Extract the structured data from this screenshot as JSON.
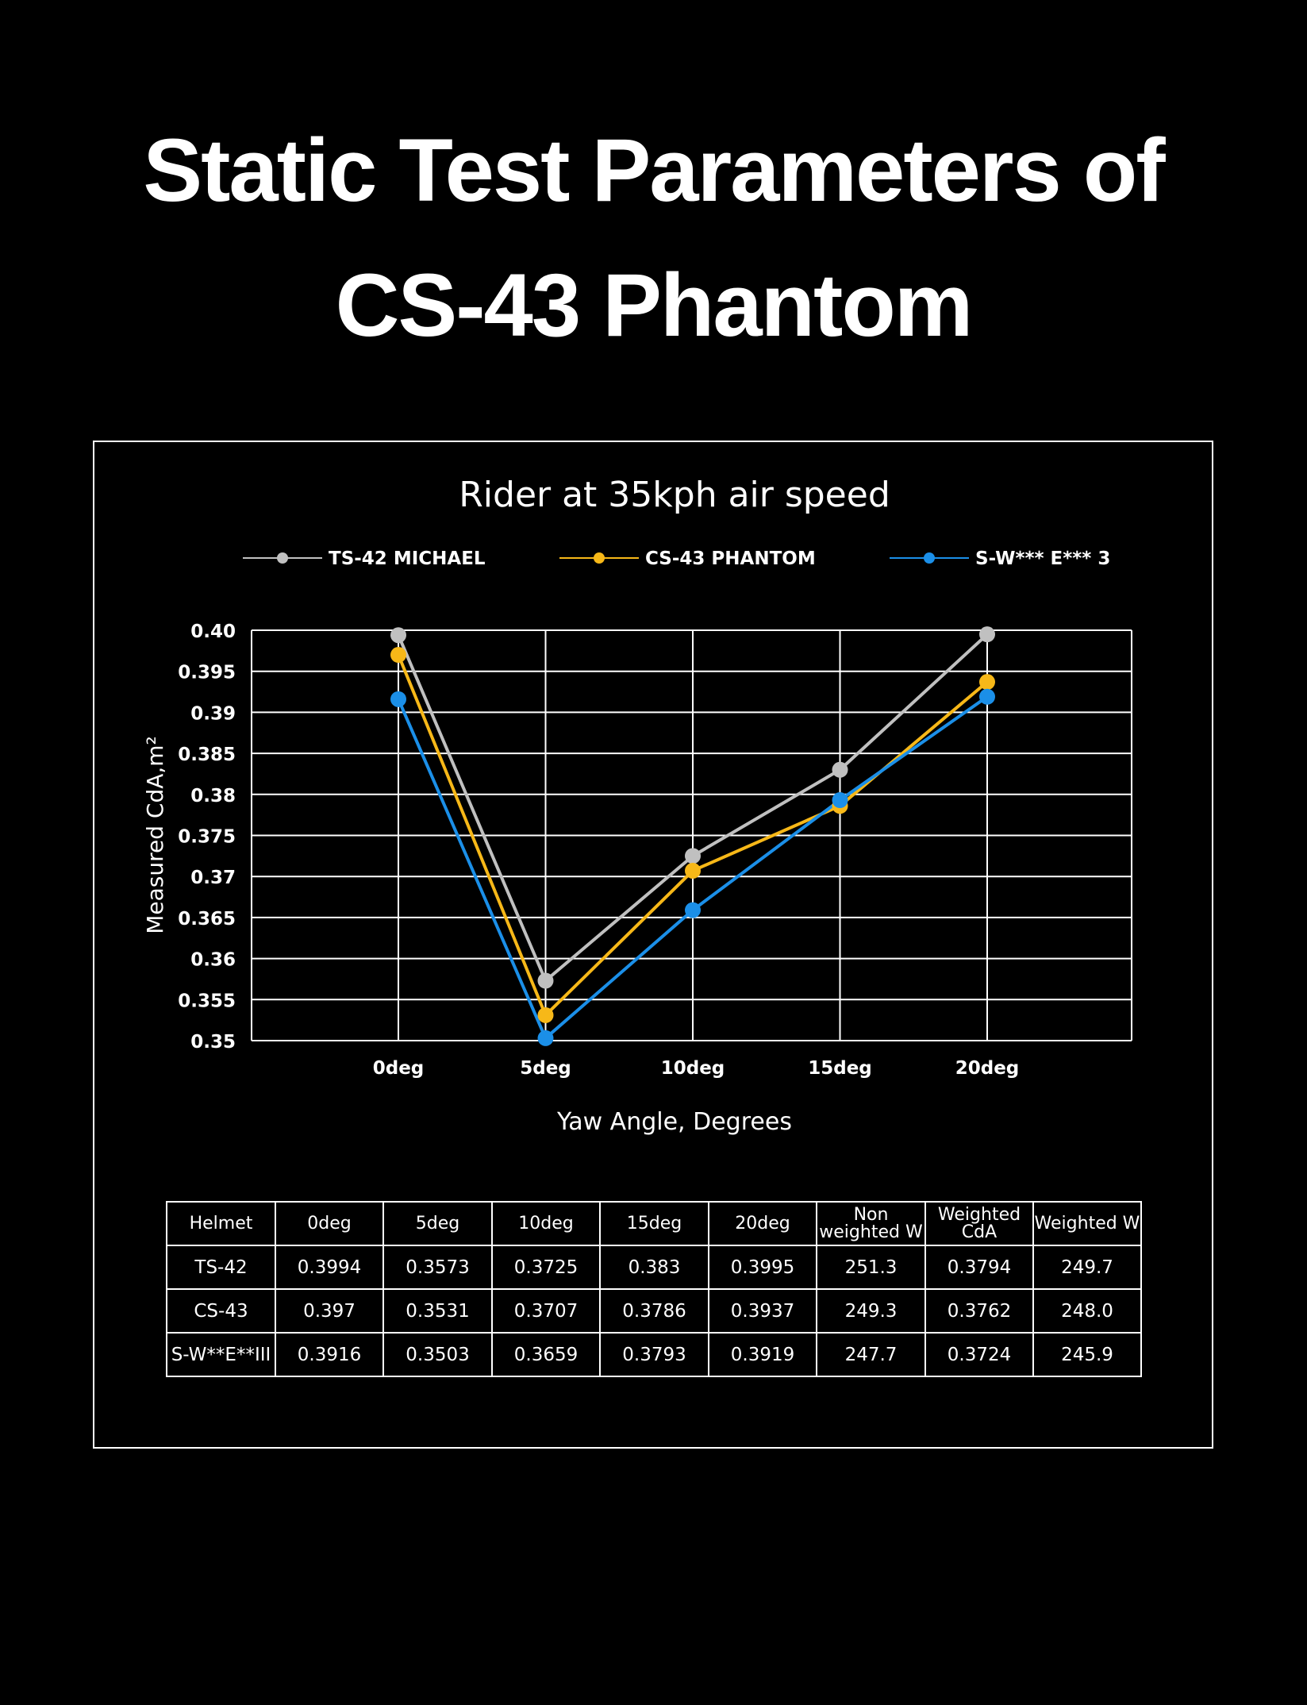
{
  "title": {
    "line1": "Static Test Parameters of",
    "line2": "CS-43 Phantom"
  },
  "colors": {
    "background": "#000000",
    "grid": "#ffffff",
    "ts42": "#c0c0c0",
    "cs43": "#f7b818",
    "sw": "#1b8fe8"
  },
  "chart_data": {
    "type": "line",
    "title": "Rider at 35kph air speed",
    "xlabel": "Yaw Angle, Degrees",
    "ylabel": "Measured CdA,m²",
    "categories": [
      "0deg",
      "5deg",
      "10deg",
      "15deg",
      "20deg"
    ],
    "ylim": [
      0.35,
      0.4
    ],
    "yticks": [
      "0.40",
      "0.395",
      "0.39",
      "0.385",
      "0.38",
      "0.375",
      "0.37",
      "0.365",
      "0.36",
      "0.355",
      "0.35"
    ],
    "grid": true,
    "legend_position": "top",
    "series": [
      {
        "name": "TS-42 MICHAEL",
        "color": "#c0c0c0",
        "values": [
          0.3994,
          0.3573,
          0.3725,
          0.383,
          0.3995
        ]
      },
      {
        "name": "CS-43 PHANTOM",
        "color": "#f7b818",
        "values": [
          0.397,
          0.3531,
          0.3707,
          0.3786,
          0.3937
        ]
      },
      {
        "name": "S-W*** E*** 3",
        "color": "#1b8fe8",
        "values": [
          0.3916,
          0.3503,
          0.3659,
          0.3793,
          0.3919
        ]
      }
    ]
  },
  "table": {
    "headers": [
      "Helmet",
      "0deg",
      "5deg",
      "10deg",
      "15deg",
      "20deg",
      "Non weighted W",
      "Weighted CdA",
      "Weighted W"
    ],
    "rows": [
      [
        "TS-42",
        "0.3994",
        "0.3573",
        "0.3725",
        "0.383",
        "0.3995",
        "251.3",
        "0.3794",
        "249.7"
      ],
      [
        "CS-43",
        "0.397",
        "0.3531",
        "0.3707",
        "0.3786",
        "0.3937",
        "249.3",
        "0.3762",
        "248.0"
      ],
      [
        "S-W**E**III",
        "0.3916",
        "0.3503",
        "0.3659",
        "0.3793",
        "0.3919",
        "247.7",
        "0.3724",
        "245.9"
      ]
    ]
  }
}
